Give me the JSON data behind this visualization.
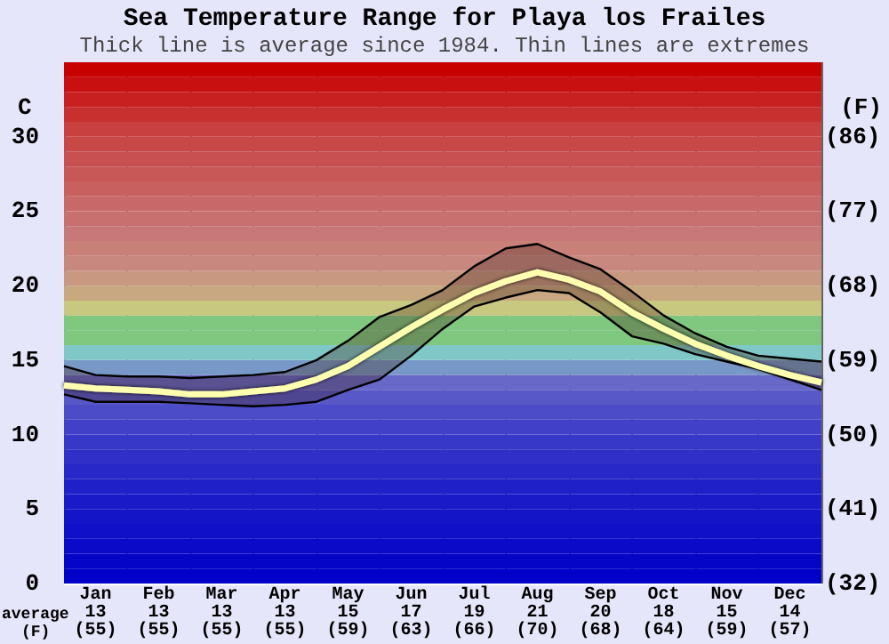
{
  "chart_data": {
    "type": "line",
    "title": "Sea Temperature Range for Playa los Frailes",
    "subtitle": "Thick line is average since 1984. Thin lines are extremes",
    "ylabel": "C",
    "y2label": "(F)",
    "annotations": [
      "average",
      "(F)"
    ],
    "categories": [
      null,
      "Jan\n13\n(55)",
      null,
      "Feb\n13\n(55)",
      null,
      "Mar\n13\n(55)",
      null,
      "Apr\n13\n(55)",
      null,
      "May\n15\n(59)",
      null,
      "Jun\n17\n(63)",
      null,
      "Jul\n19\n(66)",
      null,
      "Aug\n21\n(70)",
      null,
      "Sep\n20\n(68)",
      null,
      "Oct\n18\n(64)",
      null,
      "Nov\n15\n(59)",
      null,
      "Dec\n14\n(57)",
      null
    ],
    "series": [
      {
        "color": "#000000",
        "values": [
          14.6,
          14.0,
          13.9,
          13.9,
          13.8,
          13.9,
          14.0,
          14.2,
          15.0,
          16.3,
          17.9,
          18.7,
          19.7,
          21.3,
          22.5,
          22.8,
          21.9,
          21.1,
          19.6,
          18.0,
          16.8,
          15.9,
          15.3,
          15.1,
          14.9
        ]
      },
      {
        "color": "#000000",
        "values": [
          12.7,
          12.2,
          12.2,
          12.2,
          12.1,
          12.0,
          11.9,
          12.0,
          12.2,
          13.0,
          13.7,
          15.3,
          17.1,
          18.6,
          19.2,
          19.7,
          19.5,
          18.2,
          16.6,
          16.1,
          15.4,
          14.9,
          14.4,
          13.7,
          13.0
        ]
      },
      {
        "color": "#ffffb0",
        "values": [
          13.3,
          13.1,
          13.0,
          12.9,
          12.7,
          12.7,
          12.9,
          13.1,
          13.7,
          14.6,
          15.9,
          17.2,
          18.4,
          19.5,
          20.3,
          20.9,
          20.4,
          19.6,
          18.2,
          17.1,
          16.1,
          15.3,
          14.6,
          14.0,
          13.5
        ],
        "upper": [
          14.6,
          14.0,
          13.9,
          13.9,
          13.8,
          13.9,
          14.0,
          14.2,
          15.0,
          16.3,
          17.9,
          18.7,
          19.7,
          21.3,
          22.5,
          22.8,
          21.9,
          21.1,
          19.6,
          18.0,
          16.8,
          15.9,
          15.3,
          15.1,
          14.9
        ],
        "lower": [
          12.7,
          12.2,
          12.2,
          12.2,
          12.1,
          12.0,
          11.9,
          12.0,
          12.2,
          13.0,
          13.7,
          15.3,
          17.1,
          18.6,
          19.2,
          19.7,
          19.5,
          18.2,
          16.6,
          16.1,
          15.4,
          14.9,
          14.4,
          13.7,
          13.0
        ]
      }
    ],
    "ylim": [
      0,
      35
    ],
    "yticks": [
      0,
      5,
      10,
      15,
      20,
      25,
      30
    ],
    "y2lim": [
      32,
      95
    ],
    "y2ticks": [
      {
        "value": 32,
        "label": "(32)"
      },
      {
        "value": 41,
        "label": "(41)"
      },
      {
        "value": 50,
        "label": "(50)"
      },
      {
        "value": 59,
        "label": "(59)"
      },
      {
        "value": 68,
        "label": "(68)"
      },
      {
        "value": 77,
        "label": "(77)"
      },
      {
        "value": 86,
        "label": "(86)"
      }
    ],
    "grid": true,
    "bands": [
      {
        "axis": "y",
        "from": 0,
        "to": 1,
        "color": "#0000c8"
      },
      {
        "axis": "y",
        "from": 1,
        "to": 2,
        "color": "#0505c8"
      },
      {
        "axis": "y",
        "from": 2,
        "to": 3,
        "color": "#0a0ac8"
      },
      {
        "axis": "y",
        "from": 3,
        "to": 4,
        "color": "#1010c8"
      },
      {
        "axis": "y",
        "from": 4,
        "to": 5,
        "color": "#1515c8"
      },
      {
        "axis": "y",
        "from": 5,
        "to": 6,
        "color": "#1a1ac8"
      },
      {
        "axis": "y",
        "from": 6,
        "to": 7,
        "color": "#2020c8"
      },
      {
        "axis": "y",
        "from": 7,
        "to": 8,
        "color": "#2828c8"
      },
      {
        "axis": "y",
        "from": 8,
        "to": 9,
        "color": "#3030c8"
      },
      {
        "axis": "y",
        "from": 9,
        "to": 10,
        "color": "#3838c8"
      },
      {
        "axis": "y",
        "from": 10,
        "to": 11,
        "color": "#4040c8"
      },
      {
        "axis": "y",
        "from": 11,
        "to": 12,
        "color": "#4c4cc8"
      },
      {
        "axis": "y",
        "from": 12,
        "to": 13,
        "color": "#5858c8"
      },
      {
        "axis": "y",
        "from": 13,
        "to": 14,
        "color": "#6868c8"
      },
      {
        "axis": "y",
        "from": 14,
        "to": 15,
        "color": "#7898c8"
      },
      {
        "axis": "y",
        "from": 15,
        "to": 16,
        "color": "#80c8c8"
      },
      {
        "axis": "y",
        "from": 16,
        "to": 17,
        "color": "#80c880"
      },
      {
        "axis": "y",
        "from": 17,
        "to": 18,
        "color": "#80c880"
      },
      {
        "axis": "y",
        "from": 18,
        "to": 19,
        "color": "#c8c880"
      },
      {
        "axis": "y",
        "from": 19,
        "to": 20,
        "color": "#c8a880"
      },
      {
        "axis": "y",
        "from": 20,
        "to": 21,
        "color": "#c89880"
      },
      {
        "axis": "y",
        "from": 21,
        "to": 22,
        "color": "#c88880"
      },
      {
        "axis": "y",
        "from": 22,
        "to": 23,
        "color": "#c88078"
      },
      {
        "axis": "y",
        "from": 23,
        "to": 24,
        "color": "#c87878"
      },
      {
        "axis": "y",
        "from": 24,
        "to": 25,
        "color": "#c87070"
      },
      {
        "axis": "y",
        "from": 25,
        "to": 26,
        "color": "#c86868"
      },
      {
        "axis": "y",
        "from": 26,
        "to": 27,
        "color": "#c86060"
      },
      {
        "axis": "y",
        "from": 27,
        "to": 28,
        "color": "#c85858"
      },
      {
        "axis": "y",
        "from": 28,
        "to": 29,
        "color": "#c85050"
      },
      {
        "axis": "y",
        "from": 29,
        "to": 30,
        "color": "#c84848"
      },
      {
        "axis": "y",
        "from": 30,
        "to": 31,
        "color": "#c84040"
      },
      {
        "axis": "y",
        "from": 31,
        "to": 32,
        "color": "#c83030"
      },
      {
        "axis": "y",
        "from": 32,
        "to": 33,
        "color": "#c82020"
      },
      {
        "axis": "y",
        "from": 33,
        "to": 34,
        "color": "#c81010"
      },
      {
        "axis": "y",
        "from": 34,
        "to": 35,
        "color": "#c80000"
      }
    ]
  }
}
